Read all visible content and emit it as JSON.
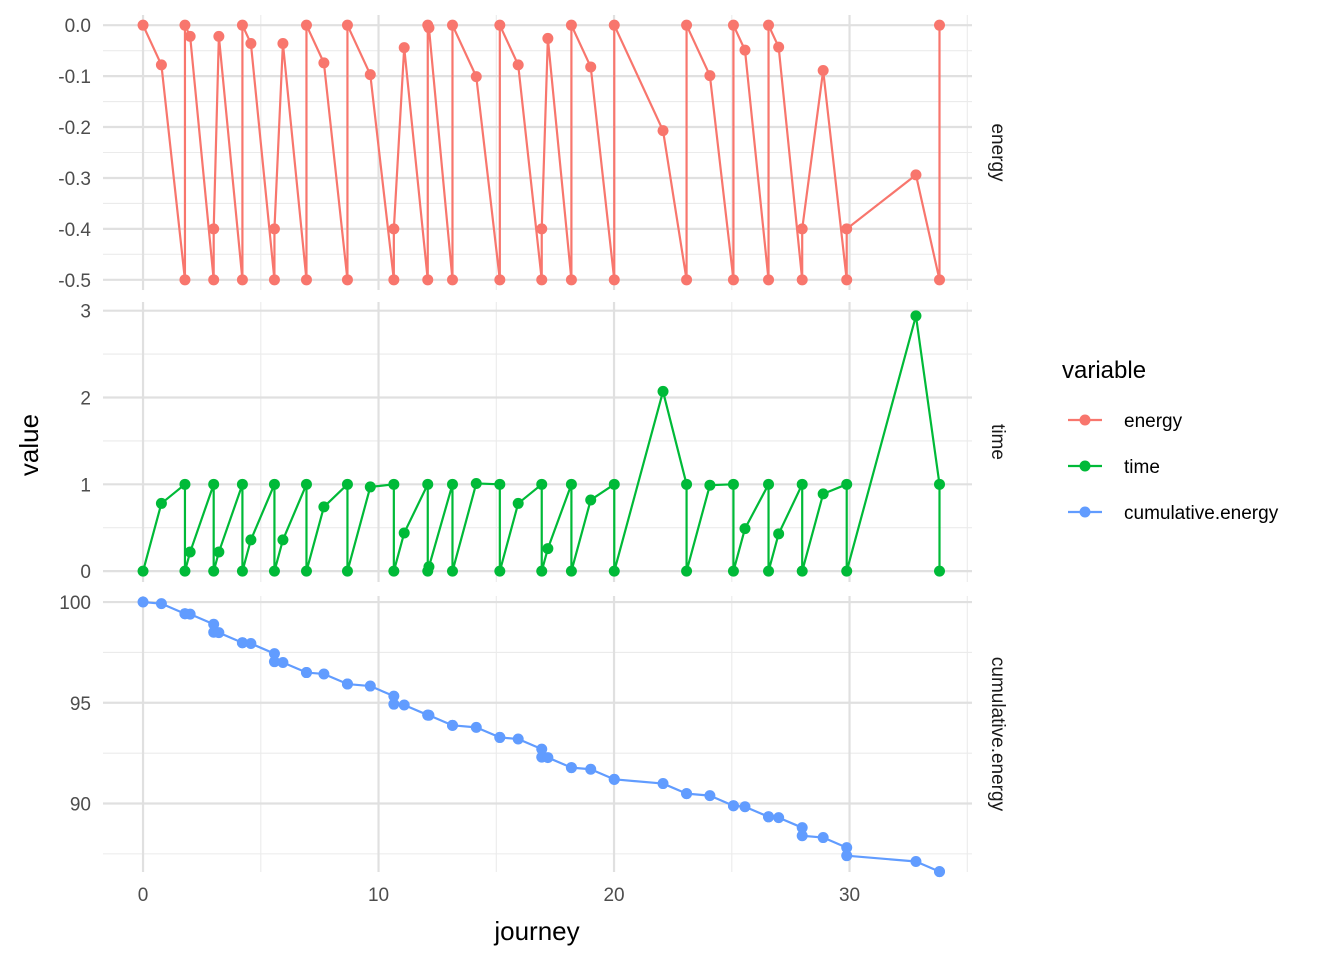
{
  "chart_data": {
    "type": "line",
    "facet_variable": "variable",
    "xlabel": "journey",
    "ylabel": "value",
    "x_ticks": [
      0,
      10,
      20,
      30
    ],
    "xlim": [
      -1.7,
      35.2
    ],
    "grid": true,
    "legend": {
      "title": "variable",
      "position": "right",
      "entries": [
        "energy",
        "time",
        "cumulative.energy"
      ]
    },
    "series": [
      {
        "name": "energy",
        "color": "#F8766D",
        "ylim": [
          -0.52,
          0.02
        ],
        "y_ticks": [
          0.0,
          -0.1,
          -0.2,
          -0.3,
          -0.4,
          -0.5
        ],
        "y_tick_labels": [
          "0.0",
          "-0.1",
          "-0.2",
          "-0.3",
          "-0.4",
          "-0.5"
        ],
        "points": [
          [
            0,
            0.0
          ],
          [
            0.78,
            -0.078
          ],
          [
            1.78,
            -0.5
          ],
          [
            1.78,
            0.0
          ],
          [
            2.0,
            -0.022
          ],
          [
            3.0,
            -0.5
          ],
          [
            3.0,
            -0.4
          ],
          [
            3.22,
            -0.022
          ],
          [
            4.22,
            -0.5
          ],
          [
            4.22,
            0.0
          ],
          [
            4.58,
            -0.036
          ],
          [
            5.58,
            -0.5
          ],
          [
            5.58,
            -0.4
          ],
          [
            5.94,
            -0.036
          ],
          [
            6.94,
            -0.5
          ],
          [
            6.94,
            0.0
          ],
          [
            7.68,
            -0.074
          ],
          [
            8.68,
            -0.5
          ],
          [
            8.68,
            0.0
          ],
          [
            9.65,
            -0.097
          ],
          [
            10.65,
            -0.5
          ],
          [
            10.65,
            -0.4
          ],
          [
            11.09,
            -0.044
          ],
          [
            12.09,
            -0.5
          ],
          [
            12.09,
            0.0
          ],
          [
            12.14,
            -0.005
          ],
          [
            13.14,
            -0.5
          ],
          [
            13.14,
            0.0
          ],
          [
            14.15,
            -0.101
          ],
          [
            15.15,
            -0.5
          ],
          [
            15.15,
            0.0
          ],
          [
            15.93,
            -0.078
          ],
          [
            16.93,
            -0.5
          ],
          [
            16.93,
            -0.4
          ],
          [
            17.19,
            -0.026
          ],
          [
            18.19,
            -0.5
          ],
          [
            18.19,
            0.0
          ],
          [
            19.01,
            -0.082
          ],
          [
            20.01,
            -0.5
          ],
          [
            20.01,
            0.0
          ],
          [
            22.08,
            -0.207
          ],
          [
            23.08,
            -0.5
          ],
          [
            23.08,
            0.0
          ],
          [
            24.07,
            -0.099
          ],
          [
            25.07,
            -0.5
          ],
          [
            25.07,
            0.0
          ],
          [
            25.56,
            -0.049
          ],
          [
            26.56,
            -0.5
          ],
          [
            26.56,
            0.0
          ],
          [
            26.99,
            -0.043
          ],
          [
            27.99,
            -0.5
          ],
          [
            27.99,
            -0.4
          ],
          [
            28.88,
            -0.089
          ],
          [
            29.88,
            -0.5
          ],
          [
            29.88,
            -0.4
          ],
          [
            32.82,
            -0.294
          ],
          [
            33.82,
            -0.5
          ],
          [
            33.82,
            0.0
          ]
        ]
      },
      {
        "name": "time",
        "color": "#00BA38",
        "ylim": [
          -0.125,
          3.1
        ],
        "y_ticks": [
          0,
          1,
          2,
          3
        ],
        "y_tick_labels": [
          "0",
          "1",
          "2",
          "3"
        ],
        "points": [
          [
            0,
            0.0
          ],
          [
            0.78,
            0.78
          ],
          [
            1.78,
            1.0
          ],
          [
            1.78,
            0.0
          ],
          [
            2.0,
            0.22
          ],
          [
            3.0,
            1.0
          ],
          [
            3.0,
            0.0
          ],
          [
            3.22,
            0.22
          ],
          [
            4.22,
            1.0
          ],
          [
            4.22,
            0.0
          ],
          [
            4.58,
            0.36
          ],
          [
            5.58,
            1.0
          ],
          [
            5.58,
            0.0
          ],
          [
            5.94,
            0.36
          ],
          [
            6.94,
            1.0
          ],
          [
            6.94,
            0.0
          ],
          [
            7.68,
            0.74
          ],
          [
            8.68,
            1.0
          ],
          [
            8.68,
            0.0
          ],
          [
            9.65,
            0.97
          ],
          [
            10.65,
            1.0
          ],
          [
            10.65,
            0.0
          ],
          [
            11.09,
            0.44
          ],
          [
            12.09,
            1.0
          ],
          [
            12.09,
            0.0
          ],
          [
            12.14,
            0.05
          ],
          [
            13.14,
            1.0
          ],
          [
            13.14,
            0.0
          ],
          [
            14.15,
            1.01
          ],
          [
            15.15,
            1.0
          ],
          [
            15.15,
            0.0
          ],
          [
            15.93,
            0.78
          ],
          [
            16.93,
            1.0
          ],
          [
            16.93,
            0.0
          ],
          [
            17.19,
            0.26
          ],
          [
            18.19,
            1.0
          ],
          [
            18.19,
            0.0
          ],
          [
            19.01,
            0.82
          ],
          [
            20.01,
            1.0
          ],
          [
            20.01,
            0.0
          ],
          [
            22.08,
            2.07
          ],
          [
            23.08,
            1.0
          ],
          [
            23.08,
            0.0
          ],
          [
            24.07,
            0.99
          ],
          [
            25.07,
            1.0
          ],
          [
            25.07,
            0.0
          ],
          [
            25.56,
            0.49
          ],
          [
            26.56,
            1.0
          ],
          [
            26.56,
            0.0
          ],
          [
            26.99,
            0.43
          ],
          [
            27.99,
            1.0
          ],
          [
            27.99,
            0.0
          ],
          [
            28.88,
            0.89
          ],
          [
            29.88,
            1.0
          ],
          [
            29.88,
            0.0
          ],
          [
            32.82,
            2.94
          ],
          [
            33.82,
            1.0
          ],
          [
            33.82,
            0.0
          ]
        ]
      },
      {
        "name": "cumulative.energy",
        "color": "#619CFF",
        "ylim": [
          86.6,
          100.3
        ],
        "y_ticks": [
          90,
          95,
          100
        ],
        "y_tick_labels": [
          "90",
          "95",
          "100"
        ],
        "points": [
          [
            0,
            100.0
          ],
          [
            0.78,
            99.92
          ],
          [
            1.78,
            99.42
          ],
          [
            1.78,
            99.42
          ],
          [
            2.0,
            99.4
          ],
          [
            3.0,
            98.9
          ],
          [
            3.0,
            98.5
          ],
          [
            3.22,
            98.48
          ],
          [
            4.22,
            97.98
          ],
          [
            4.22,
            97.98
          ],
          [
            4.58,
            97.94
          ],
          [
            5.58,
            97.44
          ],
          [
            5.58,
            97.04
          ],
          [
            5.94,
            97.0
          ],
          [
            6.94,
            96.5
          ],
          [
            6.94,
            96.5
          ],
          [
            7.68,
            96.43
          ],
          [
            8.68,
            95.93
          ],
          [
            8.68,
            95.93
          ],
          [
            9.65,
            95.83
          ],
          [
            10.65,
            95.33
          ],
          [
            10.65,
            94.93
          ],
          [
            11.09,
            94.89
          ],
          [
            12.09,
            94.39
          ],
          [
            12.09,
            94.39
          ],
          [
            12.14,
            94.38
          ],
          [
            13.14,
            93.88
          ],
          [
            13.14,
            93.88
          ],
          [
            14.15,
            93.78
          ],
          [
            15.15,
            93.28
          ],
          [
            15.15,
            93.28
          ],
          [
            15.93,
            93.2
          ],
          [
            16.93,
            92.7
          ],
          [
            16.93,
            92.3
          ],
          [
            17.19,
            92.28
          ],
          [
            18.19,
            91.78
          ],
          [
            18.19,
            91.78
          ],
          [
            19.01,
            91.7
          ],
          [
            20.01,
            91.2
          ],
          [
            20.01,
            91.2
          ],
          [
            22.08,
            90.99
          ],
          [
            23.08,
            90.49
          ],
          [
            23.08,
            90.49
          ],
          [
            24.07,
            90.39
          ],
          [
            25.07,
            89.89
          ],
          [
            25.07,
            89.89
          ],
          [
            25.56,
            89.84
          ],
          [
            26.56,
            89.34
          ],
          [
            26.56,
            89.34
          ],
          [
            26.99,
            89.3
          ],
          [
            27.99,
            88.8
          ],
          [
            27.99,
            88.4
          ],
          [
            28.88,
            88.31
          ],
          [
            29.88,
            87.81
          ],
          [
            29.88,
            87.41
          ],
          [
            32.82,
            87.12
          ],
          [
            33.82,
            86.62
          ],
          [
            33.82,
            86.62
          ]
        ]
      }
    ]
  }
}
